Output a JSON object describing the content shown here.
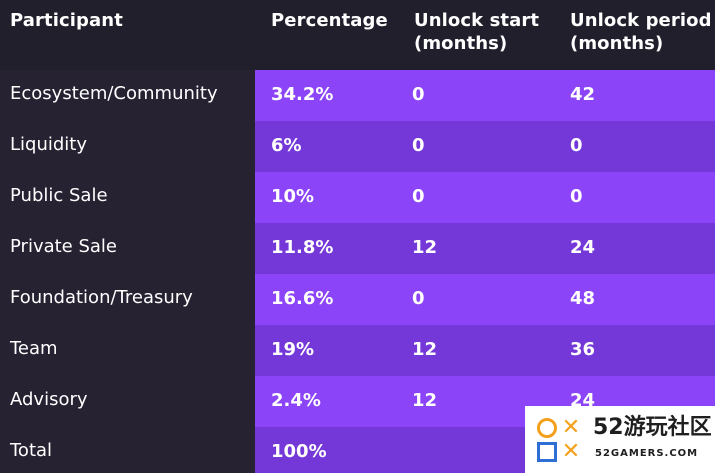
{
  "table": {
    "headers": {
      "participant": "Participant",
      "percentage": "Percentage",
      "unlock_start_line1": "Unlock start",
      "unlock_start_line2": "(months)",
      "unlock_period_line1": "Unlock period",
      "unlock_period_line2": "(months)"
    },
    "rows": [
      {
        "participant": "Ecosystem/Community",
        "percentage": "34.2%",
        "unlock_start": "0",
        "unlock_period": "42"
      },
      {
        "participant": "Liquidity",
        "percentage": "6%",
        "unlock_start": "0",
        "unlock_period": "0"
      },
      {
        "participant": "Public Sale",
        "percentage": "10%",
        "unlock_start": "0",
        "unlock_period": "0"
      },
      {
        "participant": "Private Sale",
        "percentage": "11.8%",
        "unlock_start": "12",
        "unlock_period": "24"
      },
      {
        "participant": "Foundation/Treasury",
        "percentage": "16.6%",
        "unlock_start": "0",
        "unlock_period": "48"
      },
      {
        "participant": "Team",
        "percentage": "19%",
        "unlock_start": "12",
        "unlock_period": "36"
      },
      {
        "participant": "Advisory",
        "percentage": "2.4%",
        "unlock_start": "12",
        "unlock_period": "24"
      },
      {
        "participant": "Total",
        "percentage": "100%",
        "unlock_start": "",
        "unlock_period": ""
      }
    ]
  },
  "watermark": {
    "title": "52游玩社区",
    "url": "52GAMERS.COM"
  },
  "colors": {
    "background": "#262232",
    "row_odd": "#8b44f7",
    "row_even": "#7538d8",
    "text": "#ffffff"
  }
}
